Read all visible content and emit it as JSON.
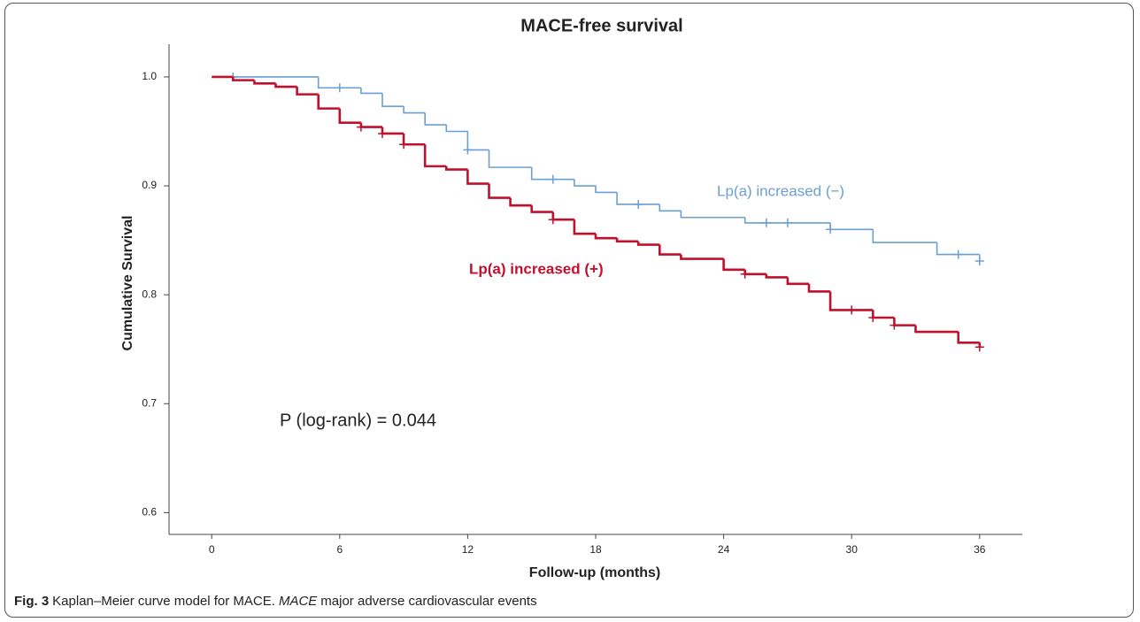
{
  "chart_data": {
    "type": "step",
    "title": "MACE-free survival",
    "x_label": "Follow-up (months)",
    "y_label": "Cumulative Survival",
    "annotation": "P (log-rank) = 0.044",
    "xlim": [
      -2,
      38
    ],
    "xticks": [
      0,
      6,
      12,
      18,
      24,
      30,
      36
    ],
    "ylim": [
      0.58,
      1.03
    ],
    "yticks": [
      {
        "value": 1,
        "label": "1.0"
      },
      0.9,
      0.8,
      0.7,
      0.6
    ],
    "grid": false,
    "series": [
      {
        "name": "Lp(a) increased (−)",
        "color": "#6a9fd4",
        "x": [
          0,
          5,
          7,
          8,
          9,
          10,
          11,
          12,
          13,
          15,
          17,
          18,
          19,
          21,
          22,
          25,
          29,
          31,
          34,
          36
        ],
        "values": [
          1.0,
          0.99,
          0.985,
          0.973,
          0.967,
          0.956,
          0.95,
          0.933,
          0.917,
          0.906,
          0.9,
          0.894,
          0.883,
          0.877,
          0.871,
          0.866,
          0.86,
          0.848,
          0.837,
          0.831
        ],
        "censored_x": [
          1,
          6,
          12,
          16,
          20,
          26,
          27,
          29,
          35,
          36
        ],
        "censored_values": [
          1.0,
          0.99,
          0.933,
          0.906,
          0.883,
          0.866,
          0.866,
          0.86,
          0.837,
          0.831
        ]
      },
      {
        "name": "Lp(a) increased (+)",
        "color": "#c0102c",
        "x": [
          0,
          1,
          2,
          3,
          4,
          5,
          6,
          7,
          8,
          9,
          10,
          11,
          12,
          13,
          14,
          15,
          16,
          17,
          18,
          19,
          20,
          21,
          22,
          24,
          25,
          26,
          27,
          28,
          29,
          31,
          32,
          33,
          35,
          36
        ],
        "values": [
          1.0,
          0.997,
          0.994,
          0.991,
          0.984,
          0.971,
          0.958,
          0.954,
          0.948,
          0.938,
          0.918,
          0.915,
          0.902,
          0.889,
          0.882,
          0.876,
          0.869,
          0.856,
          0.852,
          0.849,
          0.846,
          0.837,
          0.833,
          0.823,
          0.819,
          0.816,
          0.81,
          0.803,
          0.786,
          0.779,
          0.772,
          0.766,
          0.756,
          0.752
        ],
        "censored_x": [
          7,
          8,
          9,
          16,
          25,
          30,
          31,
          32,
          36
        ],
        "censored_values": [
          0.954,
          0.948,
          0.938,
          0.869,
          0.819,
          0.786,
          0.779,
          0.772,
          0.752
        ]
      }
    ]
  },
  "caption": {
    "label": "Fig. 3",
    "text": "Kaplan–Meier curve model for MACE.",
    "term": "MACE",
    "definition": "major adverse cardiovascular events"
  }
}
